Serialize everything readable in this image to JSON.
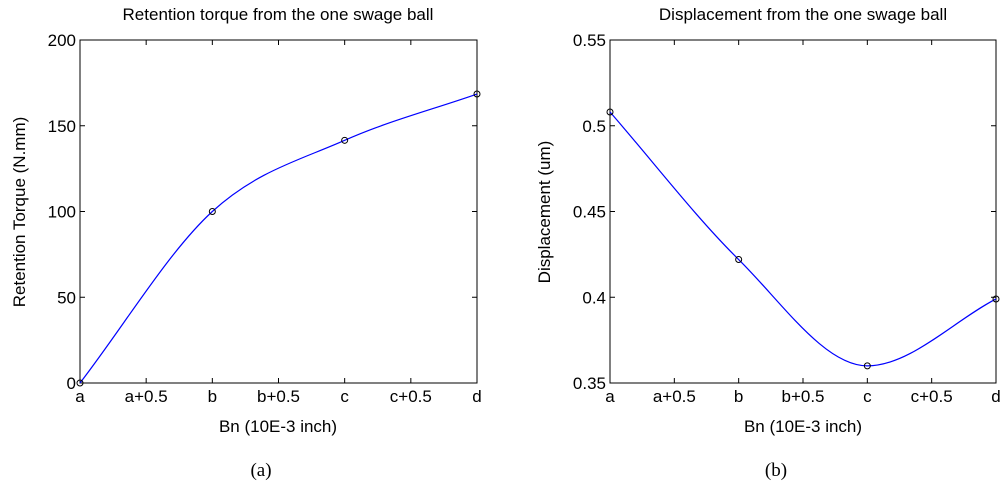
{
  "chart_data": [
    {
      "type": "line",
      "title": "Retention torque from the one swage ball",
      "xlabel": "Bn (10E-3 inch)",
      "ylabel": "Retention Torque (N.mm)",
      "caption": "(a)",
      "x_tick_labels": [
        "a",
        "a+0.5",
        "b",
        "b+0.5",
        "c",
        "c+0.5",
        "d"
      ],
      "y_ticks": [
        0,
        50,
        100,
        150,
        200
      ],
      "ylim": [
        0,
        200
      ],
      "grid": false,
      "line_color": "#0000ff",
      "marker": "open-circle",
      "series": [
        {
          "x": [
            "a",
            "b",
            "c",
            "d"
          ],
          "values": [
            0,
            100,
            141.5,
            168.5
          ]
        }
      ]
    },
    {
      "type": "line",
      "title": "Displacement from the one swage ball",
      "xlabel": "Bn (10E-3 inch)",
      "ylabel": "Displacement (um)",
      "caption": "(b)",
      "x_tick_labels": [
        "a",
        "a+0.5",
        "b",
        "b+0.5",
        "c",
        "c+0.5",
        "d"
      ],
      "y_ticks": [
        0.35,
        0.4,
        0.45,
        0.5,
        0.55
      ],
      "y_tick_labels": [
        "0.35",
        "0.4",
        "0.45",
        "0.5",
        "0.55"
      ],
      "ylim": [
        0.35,
        0.55
      ],
      "grid": false,
      "line_color": "#0000ff",
      "marker": "open-circle",
      "series": [
        {
          "x": [
            "a",
            "b",
            "c",
            "d"
          ],
          "values": [
            0.508,
            0.422,
            0.36,
            0.399
          ]
        }
      ]
    }
  ]
}
